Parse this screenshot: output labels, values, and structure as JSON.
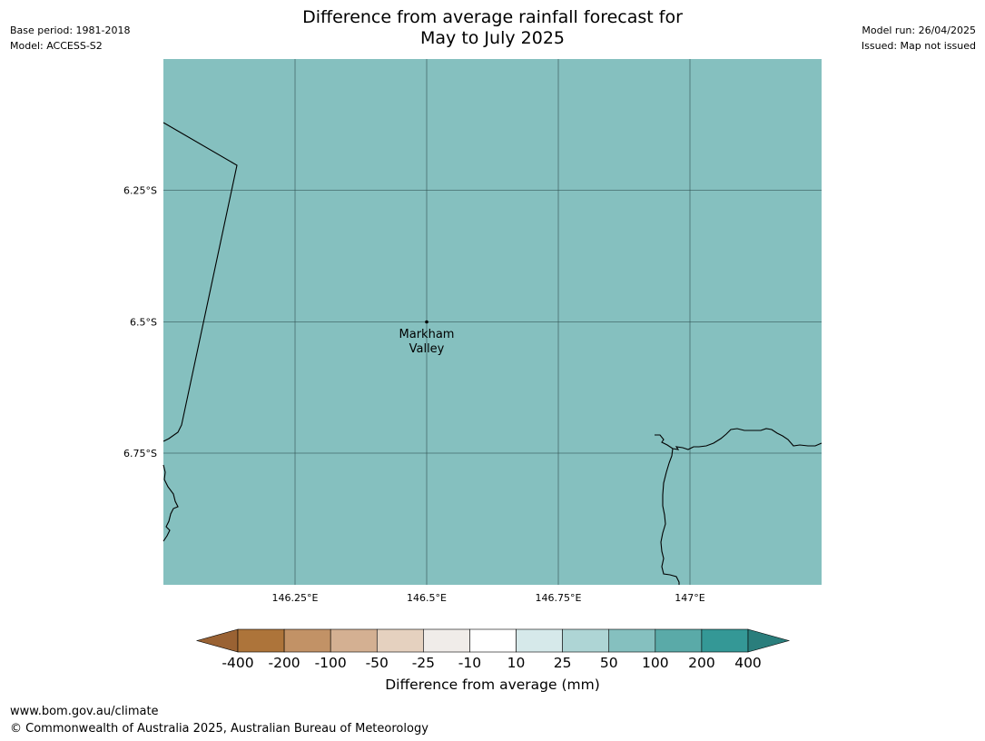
{
  "title": {
    "line1": "Difference from average rainfall forecast for",
    "line2": "May to July 2025"
  },
  "meta_left": {
    "base_period": "Base period: 1981-2018",
    "model": "Model: ACCESS-S2"
  },
  "meta_right": {
    "model_run": "Model run: 26/04/2025",
    "issued": "Issued: Map not issued"
  },
  "map": {
    "fill_color": "#85c0bf",
    "lat_labels": [
      "6.25°S",
      "6.5°S",
      "6.75°S"
    ],
    "lon_labels": [
      "146.25°E",
      "146.5°E",
      "146.75°E",
      "147°E"
    ],
    "place": {
      "name_line1": "Markham",
      "name_line2": "Valley",
      "lon": 146.5,
      "lat": -6.5
    }
  },
  "colorbar": {
    "title": "Difference from average (mm)",
    "tick_labels": [
      "-400",
      "-200",
      "-100",
      "-50",
      "-25",
      "-10",
      "10",
      "25",
      "50",
      "100",
      "200",
      "400"
    ],
    "colors": {
      "below": "#9a6233",
      "bins": [
        "#ad743a",
        "#c29266",
        "#d4b092",
        "#e5d1bf",
        "#f0ece9",
        "#ffffff",
        "#d6e9ea",
        "#aed5d5",
        "#85c0bf",
        "#5aaaa8",
        "#349896"
      ],
      "above": "#2a7e7c"
    }
  },
  "footer": {
    "url": "www.bom.gov.au/climate",
    "copyright": "© Commonwealth of Australia 2025, Australian Bureau of Meteorology"
  }
}
